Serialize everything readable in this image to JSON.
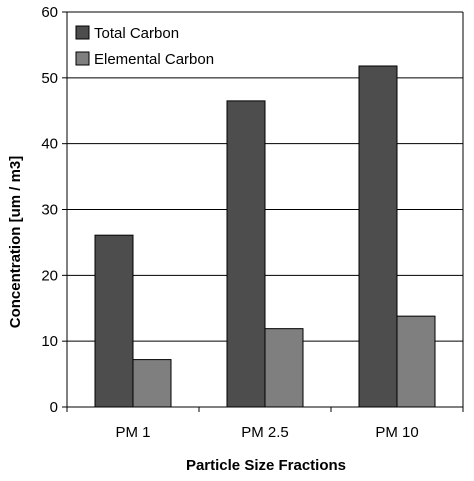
{
  "chart_data": {
    "type": "bar",
    "categories": [
      "PM 1",
      "PM 2.5",
      "PM 10"
    ],
    "series": [
      {
        "name": "Total Carbon",
        "values": [
          26.1,
          46.5,
          51.8
        ],
        "color": "#4d4d4d"
      },
      {
        "name": "Elemental Carbon",
        "values": [
          7.2,
          11.9,
          13.8
        ],
        "color": "#7f7f7f"
      }
    ],
    "xlabel": "Particle Size Fractions",
    "ylabel": "Concentration [um / m3]",
    "ylim": [
      0,
      60
    ],
    "yticks": [
      "0",
      "10",
      "20",
      "30",
      "40",
      "50",
      "60"
    ],
    "grid": true,
    "legend_position": "top-left"
  }
}
